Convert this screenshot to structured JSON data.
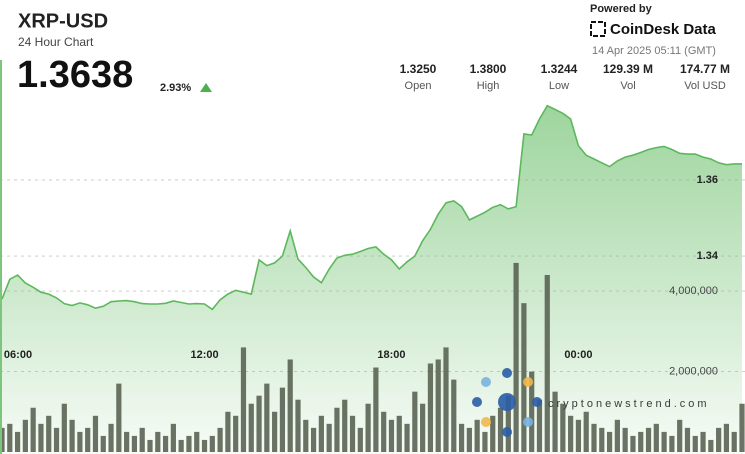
{
  "header": {
    "title": "XRP-USD",
    "subtitle": "24 Hour Chart",
    "price": "1.3638",
    "change": "2.93%",
    "powered_by": "Powered by",
    "brand": "CoinDesk Data",
    "timestamp": "14 Apr 2025 05:11 (GMT)",
    "watermark": "cryptonewstrend.com"
  },
  "stats": [
    {
      "value": "1.3250",
      "label": "Open"
    },
    {
      "value": "1.3800",
      "label": "High"
    },
    {
      "value": "1.3244",
      "label": "Low"
    },
    {
      "value": "129.39 M",
      "label": "Vol"
    },
    {
      "value": "174.77 M",
      "label": "Vol USD"
    }
  ],
  "chart_data": [
    {
      "type": "area",
      "color": "#5cb85c",
      "xlim": [
        0,
        95
      ],
      "xticks": [
        {
          "value": 2,
          "label": "06:00"
        },
        {
          "value": 26,
          "label": "12:00"
        },
        {
          "value": 50,
          "label": "18:00"
        },
        {
          "value": 74,
          "label": "00:00"
        }
      ],
      "ylim": [
        1.288,
        1.381
      ],
      "yticks": [
        1.34,
        1.36
      ],
      "grid": true,
      "values": [
        1.3287,
        1.3339,
        1.335,
        1.3329,
        1.3318,
        1.3305,
        1.33,
        1.329,
        1.3275,
        1.327,
        1.3277,
        1.3272,
        1.3263,
        1.3268,
        1.328,
        1.3282,
        1.3283,
        1.328,
        1.3275,
        1.3274,
        1.3274,
        1.3276,
        1.3282,
        1.3278,
        1.3274,
        1.3275,
        1.3274,
        1.326,
        1.3285,
        1.33,
        1.331,
        1.3305,
        1.33,
        1.339,
        1.3375,
        1.3382,
        1.34,
        1.3466,
        1.3392,
        1.337,
        1.3345,
        1.333,
        1.3366,
        1.3395,
        1.3402,
        1.3405,
        1.3412,
        1.342,
        1.3424,
        1.3405,
        1.339,
        1.3366,
        1.3385,
        1.34,
        1.344,
        1.347,
        1.351,
        1.354,
        1.3545,
        1.353,
        1.3495,
        1.3505,
        1.3515,
        1.3528,
        1.3535,
        1.3524,
        1.353,
        1.3721,
        1.3718,
        1.376,
        1.3795,
        1.3785,
        1.3775,
        1.376,
        1.369,
        1.3665,
        1.3655,
        1.3645,
        1.3635,
        1.365,
        1.366,
        1.3665,
        1.3672,
        1.368,
        1.3685,
        1.3688,
        1.368,
        1.367,
        1.3668,
        1.3668,
        1.366,
        1.3655,
        1.3645,
        1.364,
        1.3642,
        1.3642
      ]
    },
    {
      "type": "bar",
      "color": "#56604f",
      "xlim": [
        0,
        95
      ],
      "ylim": [
        0,
        8750000
      ],
      "yticks": [
        {
          "value": 2000000,
          "label": "2,000,000"
        },
        {
          "value": 4000000,
          "label": "4,000,000"
        }
      ],
      "grid": true,
      "values": [
        600000,
        700000,
        500000,
        800000,
        1100000,
        700000,
        900000,
        600000,
        1200000,
        800000,
        500000,
        600000,
        900000,
        400000,
        700000,
        1700000,
        500000,
        400000,
        600000,
        300000,
        500000,
        400000,
        700000,
        300000,
        400000,
        500000,
        300000,
        400000,
        600000,
        1000000,
        900000,
        2600000,
        1200000,
        1400000,
        1700000,
        1000000,
        1600000,
        2300000,
        1300000,
        800000,
        600000,
        900000,
        700000,
        1100000,
        1300000,
        900000,
        600000,
        1200000,
        2100000,
        1000000,
        800000,
        900000,
        700000,
        1500000,
        1200000,
        2200000,
        2300000,
        2600000,
        1800000,
        700000,
        600000,
        800000,
        500000,
        900000,
        1100000,
        1400000,
        4700000,
        3700000,
        2000000,
        1300000,
        4400000,
        1500000,
        1200000,
        900000,
        800000,
        1000000,
        700000,
        600000,
        500000,
        800000,
        600000,
        400000,
        500000,
        600000,
        700000,
        500000,
        400000,
        800000,
        600000,
        400000,
        500000,
        300000,
        600000,
        700000,
        500000,
        1200000
      ]
    }
  ]
}
